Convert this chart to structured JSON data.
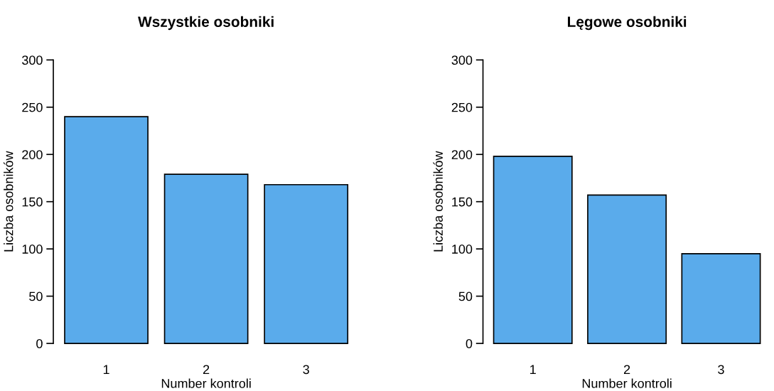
{
  "chart_data": [
    {
      "type": "bar",
      "title": "Wszystkie osobniki",
      "xlabel": "Number kontroli",
      "ylabel": "Liczba osobników",
      "categories": [
        "1",
        "2",
        "3"
      ],
      "values": [
        240,
        179,
        168
      ],
      "color": "#5aabeb",
      "ylim": [
        0,
        300
      ],
      "yticks": [
        0,
        50,
        100,
        150,
        200,
        250,
        300
      ]
    },
    {
      "type": "bar",
      "title": "Lęgowe osobniki",
      "xlabel": "Number kontroli",
      "ylabel": "Liczba osobników",
      "categories": [
        "1",
        "2",
        "3"
      ],
      "values": [
        198,
        157,
        95
      ],
      "color": "#5aabeb",
      "ylim": [
        0,
        300
      ],
      "yticks": [
        0,
        50,
        100,
        150,
        200,
        250,
        300
      ]
    }
  ]
}
